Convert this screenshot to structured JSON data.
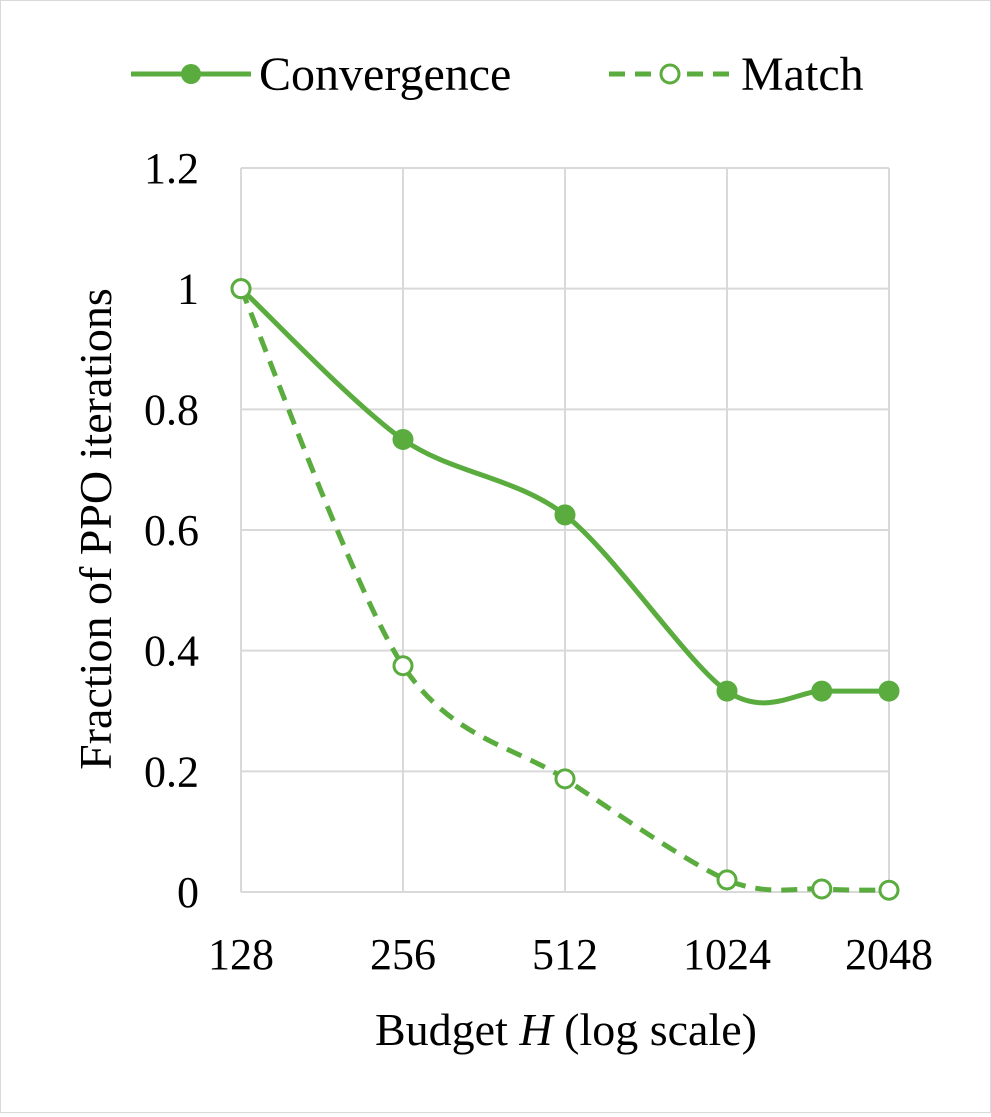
{
  "chart_data": {
    "type": "line",
    "title": "",
    "xlabel_prefix": "Budget ",
    "xlabel_var": "H",
    "xlabel_suffix": " (log scale)",
    "ylabel": "Fraction of PPO iterations",
    "x_scale": "log2",
    "xlim": [
      128,
      2048
    ],
    "ylim": [
      0,
      1.2
    ],
    "x_ticks": [
      128,
      256,
      512,
      1024,
      2048
    ],
    "x_tick_labels": [
      "128",
      "256",
      "512",
      "1024",
      "2048"
    ],
    "y_ticks": [
      0,
      0.2,
      0.4,
      0.6,
      0.8,
      1.0,
      1.2
    ],
    "y_tick_labels": [
      "0",
      "0.2",
      "0.4",
      "0.6",
      "0.8",
      "1",
      "1.2"
    ],
    "grid": true,
    "legend_position": "top",
    "series": [
      {
        "name": "Convergence",
        "style": "solid",
        "marker": "filled-circle",
        "color": "#5aac3e",
        "x": [
          128,
          256,
          512,
          1024,
          1536,
          2048
        ],
        "y": [
          1.0,
          0.75,
          0.625,
          0.333,
          0.333,
          0.333
        ]
      },
      {
        "name": "Match",
        "style": "dashed",
        "marker": "open-circle",
        "color": "#5aac3e",
        "x": [
          128,
          256,
          512,
          1024,
          1536,
          2048
        ],
        "y": [
          1.0,
          0.375,
          0.1875,
          0.02,
          0.005,
          0.003
        ]
      }
    ]
  }
}
